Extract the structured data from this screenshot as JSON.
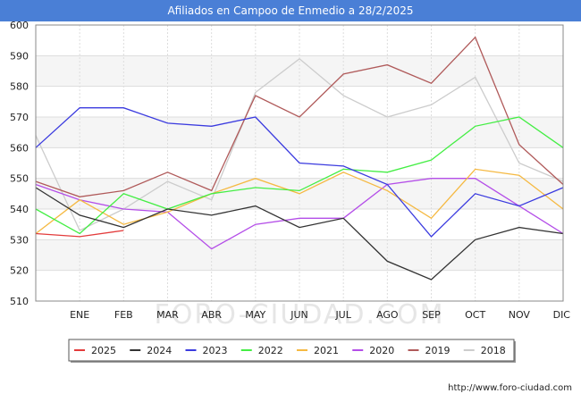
{
  "header": {
    "title": "Afiliados en Campoo de Enmedio a 28/2/2025"
  },
  "footer": {
    "url": "http://www.foro-ciudad.com"
  },
  "watermark": "FORO-CIUDAD.COM",
  "chart_data": {
    "type": "line",
    "title": "Afiliados en Campoo de Enmedio a 28/2/2025",
    "xlabel": "",
    "ylabel": "",
    "categories": [
      "",
      "ENE",
      "FEB",
      "MAR",
      "ABR",
      "MAY",
      "JUN",
      "JUL",
      "AGO",
      "SEP",
      "OCT",
      "NOV",
      "DIC"
    ],
    "ylim": [
      510,
      600
    ],
    "yticks": [
      510,
      520,
      530,
      540,
      550,
      560,
      570,
      580,
      590,
      600
    ],
    "grid": true,
    "legend_position": "bottom",
    "series": [
      {
        "name": "2025",
        "color": "#e33c3c",
        "values": [
          532,
          531,
          533,
          null,
          null,
          null,
          null,
          null,
          null,
          null,
          null,
          null,
          null
        ]
      },
      {
        "name": "2024",
        "color": "#333333",
        "values": [
          547,
          538,
          534,
          540,
          538,
          541,
          534,
          537,
          523,
          517,
          530,
          534,
          532
        ]
      },
      {
        "name": "2023",
        "color": "#3b3bdf",
        "values": [
          560,
          573,
          573,
          568,
          567,
          570,
          555,
          554,
          548,
          531,
          545,
          541,
          547
        ]
      },
      {
        "name": "2022",
        "color": "#44ee44",
        "values": [
          540,
          532,
          545,
          540,
          545,
          547,
          546,
          553,
          552,
          556,
          567,
          570,
          560
        ]
      },
      {
        "name": "2021",
        "color": "#f5b942",
        "values": [
          532,
          543,
          535,
          539,
          545,
          550,
          545,
          552,
          546,
          537,
          553,
          551,
          540
        ]
      },
      {
        "name": "2020",
        "color": "#b44ee8",
        "values": [
          548,
          543,
          540,
          539,
          527,
          535,
          537,
          537,
          548,
          550,
          550,
          541,
          532
        ]
      },
      {
        "name": "2019",
        "color": "#b05a5a",
        "values": [
          549,
          544,
          546,
          552,
          546,
          577,
          570,
          584,
          587,
          581,
          596,
          561,
          548
        ]
      },
      {
        "name": "2018",
        "color": "#cccccc",
        "values": [
          564,
          533,
          540,
          549,
          543,
          578,
          589,
          577,
          570,
          574,
          583,
          555,
          549
        ]
      }
    ]
  }
}
